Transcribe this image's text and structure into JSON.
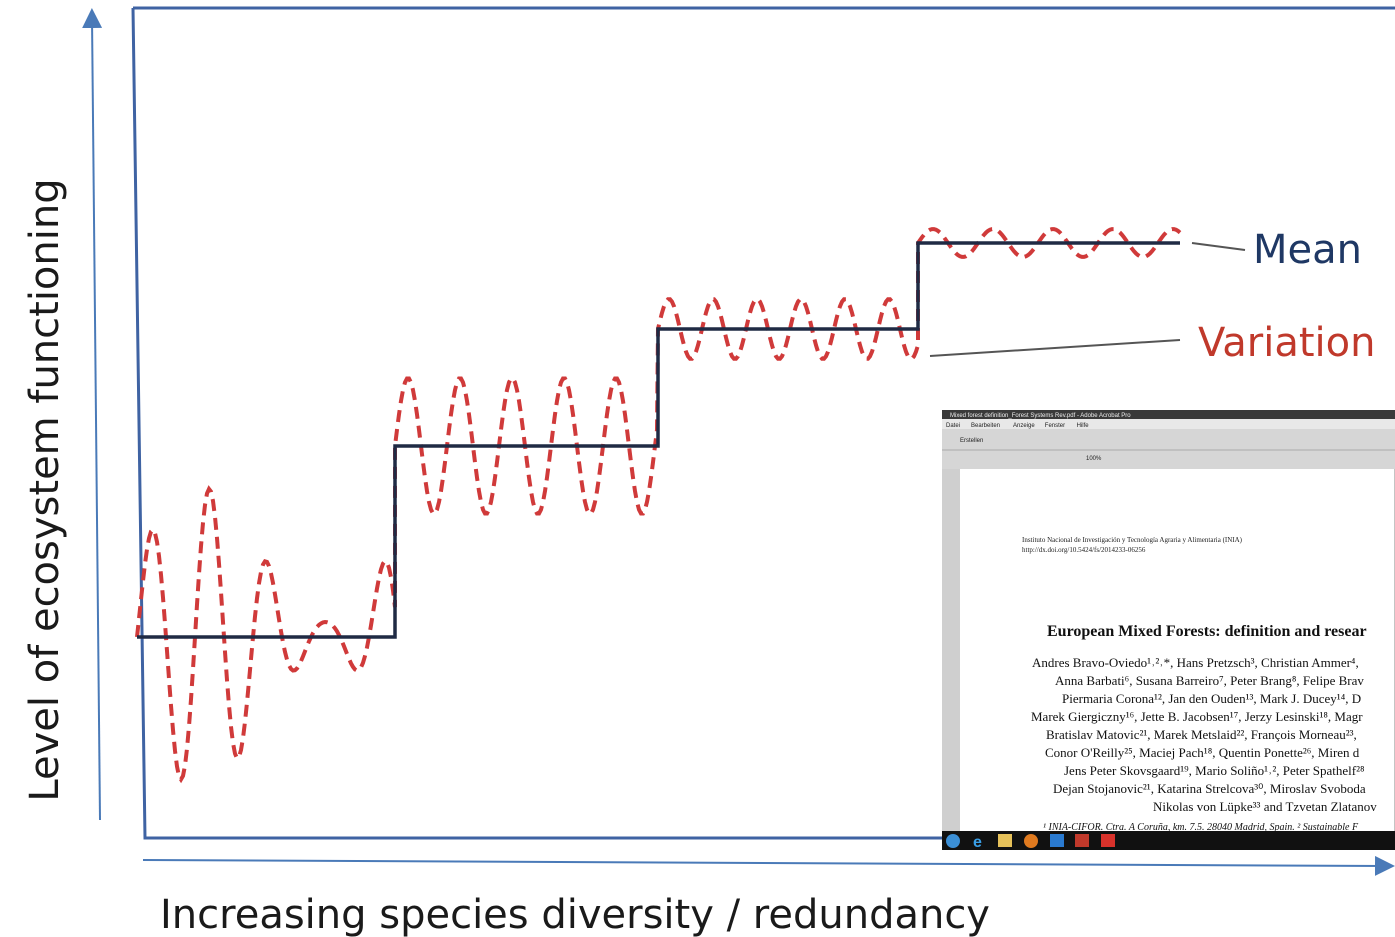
{
  "y_axis_label": "Level of ecosystem functioning",
  "x_axis_label": "Increasing species diversity / redundancy",
  "annotations": {
    "mean": "Mean",
    "variation": "Variation"
  },
  "inset": {
    "window_title": "Mixed forest definition_Forest Systems Rev.pdf - Adobe Acrobat Pro",
    "menu": [
      "Datei",
      "Bearbeiten",
      "Anzeige",
      "Fenster",
      "Hilfe"
    ],
    "toolbar": {
      "create": "Erstellen",
      "zoom": "100%"
    },
    "page": {
      "institution": "Instituto Nacional de Investigación y Tecnología Agraria y Alimentaria (INIA)",
      "doi": "http://dx.doi.org/10.5424/fs/2014233-06256",
      "title": "European Mixed Forests: definition and resear",
      "authors": [
        "Andres Bravo-Oviedo¹˒²˒*, Hans Pretzsch³, Christian Ammer⁴,",
        "Anna Barbati⁶, Susana Barreiro⁷, Peter Brang⁸, Felipe Brav",
        "Piermaria Corona¹², Jan den Ouden¹³, Mark J. Ducey¹⁴, D",
        "Marek Giergiczny¹⁶, Jette B. Jacobsen¹⁷, Jerzy Lesinski¹⁸, Magr",
        "Bratislav Matovic²¹, Marek Metslaid²², François Morneau²³,",
        "Conor O'Reilly²⁵, Maciej Pach¹⁸, Quentin Ponette²⁶, Miren d",
        "Jens Peter Skovsgaard¹⁹, Mario Soliño¹˒², Peter Spathelf²⁸",
        "Dejan Stojanovic²¹, Katarina Strelcova³⁰, Miroslav Svoboda",
        "Nikolas von Lüpke³³ and Tzvetan Zlatanov"
      ],
      "footnote": "¹ INIA-CIFOR. Ctra. A Coruña, km. 7.5. 28040 Madrid, Spain. ² Sustainable F"
    }
  }
}
